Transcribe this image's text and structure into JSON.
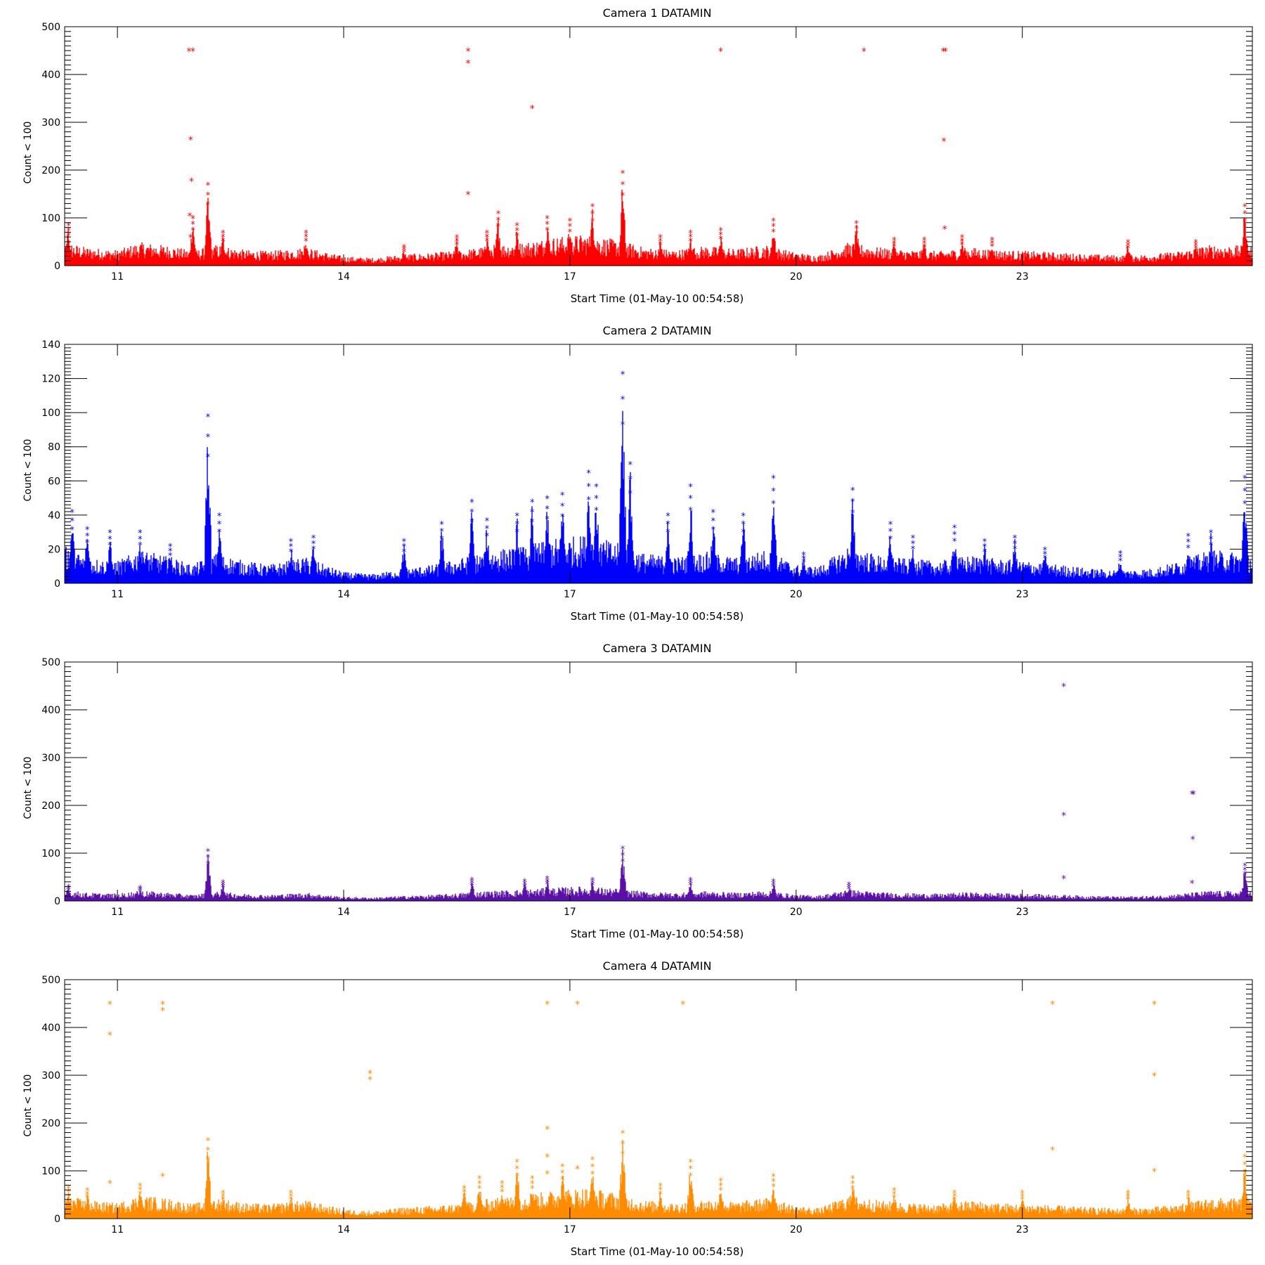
{
  "chart_data": [
    {
      "type": "scatter",
      "title": "Camera 1 DATAMIN",
      "xlabel": "Start Time (01-May-10 00:54:58)",
      "ylabel": "Count < 100",
      "color": "#ff0000",
      "xlim": [
        10.3,
        26.05
      ],
      "ylim": [
        0,
        500
      ],
      "xticks": [
        11,
        14,
        17,
        20,
        23
      ],
      "yticks": [
        0,
        100,
        200,
        300,
        400,
        500
      ],
      "y_minor_step": 10,
      "marker": "asterisk",
      "baseline": [
        [
          10.3,
          45
        ],
        [
          10.6,
          35
        ],
        [
          11.0,
          30
        ],
        [
          11.3,
          45
        ],
        [
          11.7,
          38
        ],
        [
          12.0,
          28
        ],
        [
          12.3,
          40
        ],
        [
          12.7,
          30
        ],
        [
          13.0,
          28
        ],
        [
          13.5,
          35
        ],
        [
          14.0,
          18
        ],
        [
          14.4,
          15
        ],
        [
          14.8,
          22
        ],
        [
          15.2,
          25
        ],
        [
          15.6,
          30
        ],
        [
          16.0,
          40
        ],
        [
          16.4,
          45
        ],
        [
          16.8,
          55
        ],
        [
          17.2,
          60
        ],
        [
          17.6,
          50
        ],
        [
          18.0,
          35
        ],
        [
          18.4,
          30
        ],
        [
          18.8,
          38
        ],
        [
          19.2,
          32
        ],
        [
          19.6,
          40
        ],
        [
          20.0,
          25
        ],
        [
          20.3,
          20
        ],
        [
          20.7,
          45
        ],
        [
          21.1,
          35
        ],
        [
          21.5,
          30
        ],
        [
          21.9,
          28
        ],
        [
          22.3,
          35
        ],
        [
          22.7,
          30
        ],
        [
          23.1,
          28
        ],
        [
          23.5,
          25
        ],
        [
          23.9,
          22
        ],
        [
          24.3,
          20
        ],
        [
          24.7,
          22
        ],
        [
          25.1,
          28
        ],
        [
          25.5,
          40
        ],
        [
          26.05,
          38
        ]
      ],
      "bursts": [
        [
          10.35,
          85
        ],
        [
          12.0,
          100
        ],
        [
          12.2,
          170
        ],
        [
          12.4,
          70
        ],
        [
          13.5,
          70
        ],
        [
          14.8,
          40
        ],
        [
          15.5,
          60
        ],
        [
          15.9,
          70
        ],
        [
          16.05,
          110
        ],
        [
          16.3,
          85
        ],
        [
          16.7,
          100
        ],
        [
          17.0,
          95
        ],
        [
          17.3,
          125
        ],
        [
          17.7,
          195
        ],
        [
          18.2,
          60
        ],
        [
          18.6,
          70
        ],
        [
          19.0,
          75
        ],
        [
          19.7,
          95
        ],
        [
          20.8,
          90
        ],
        [
          21.3,
          55
        ],
        [
          21.7,
          55
        ],
        [
          22.2,
          60
        ],
        [
          22.6,
          55
        ],
        [
          24.4,
          50
        ],
        [
          25.3,
          50
        ],
        [
          25.95,
          125
        ]
      ],
      "outliers": [
        [
          11.95,
          450
        ],
        [
          12.0,
          450
        ],
        [
          11.97,
          265
        ],
        [
          11.98,
          178
        ],
        [
          11.96,
          105
        ],
        [
          11.97,
          60
        ],
        [
          15.65,
          450
        ],
        [
          15.65,
          425
        ],
        [
          15.65,
          150
        ],
        [
          16.5,
          330
        ],
        [
          19.0,
          450
        ],
        [
          20.9,
          450
        ],
        [
          21.95,
          450
        ],
        [
          21.98,
          450
        ],
        [
          21.96,
          262
        ],
        [
          21.97,
          78
        ]
      ]
    },
    {
      "type": "scatter",
      "title": "Camera 2 DATAMIN",
      "xlabel": "Start Time (01-May-10 00:54:58)",
      "ylabel": "Count < 100",
      "color": "#0000ff",
      "xlim": [
        10.3,
        26.05
      ],
      "ylim": [
        0,
        140
      ],
      "xticks": [
        11,
        14,
        17,
        20,
        23
      ],
      "yticks": [
        0,
        20,
        40,
        60,
        80,
        100,
        120,
        140
      ],
      "y_minor_step": 2,
      "marker": "asterisk",
      "baseline": [
        [
          10.3,
          20
        ],
        [
          10.6,
          14
        ],
        [
          11.0,
          12
        ],
        [
          11.3,
          18
        ],
        [
          11.7,
          14
        ],
        [
          12.0,
          10
        ],
        [
          12.3,
          16
        ],
        [
          12.7,
          12
        ],
        [
          13.0,
          10
        ],
        [
          13.5,
          14
        ],
        [
          14.0,
          6
        ],
        [
          14.4,
          5
        ],
        [
          14.8,
          8
        ],
        [
          15.2,
          10
        ],
        [
          15.6,
          14
        ],
        [
          16.0,
          18
        ],
        [
          16.4,
          20
        ],
        [
          16.8,
          24
        ],
        [
          17.2,
          26
        ],
        [
          17.6,
          22
        ],
        [
          18.0,
          16
        ],
        [
          18.4,
          14
        ],
        [
          18.8,
          17
        ],
        [
          19.2,
          14
        ],
        [
          19.6,
          18
        ],
        [
          20.0,
          10
        ],
        [
          20.3,
          9
        ],
        [
          20.7,
          20
        ],
        [
          21.1,
          15
        ],
        [
          21.5,
          13
        ],
        [
          21.9,
          12
        ],
        [
          22.3,
          15
        ],
        [
          22.7,
          13
        ],
        [
          23.1,
          12
        ],
        [
          23.5,
          10
        ],
        [
          23.9,
          8
        ],
        [
          24.3,
          7
        ],
        [
          24.7,
          8
        ],
        [
          25.1,
          12
        ],
        [
          25.5,
          18
        ],
        [
          26.05,
          16
        ]
      ],
      "bursts": [
        [
          10.4,
          42
        ],
        [
          10.6,
          32
        ],
        [
          10.9,
          30
        ],
        [
          11.3,
          30
        ],
        [
          11.7,
          22
        ],
        [
          12.2,
          98
        ],
        [
          12.35,
          40
        ],
        [
          13.3,
          25
        ],
        [
          13.6,
          27
        ],
        [
          14.8,
          25
        ],
        [
          15.3,
          35
        ],
        [
          15.7,
          48
        ],
        [
          15.9,
          37
        ],
        [
          16.3,
          40
        ],
        [
          16.5,
          48
        ],
        [
          16.7,
          50
        ],
        [
          16.9,
          52
        ],
        [
          17.25,
          65
        ],
        [
          17.35,
          57
        ],
        [
          17.7,
          123
        ],
        [
          17.8,
          70
        ],
        [
          18.3,
          40
        ],
        [
          18.6,
          57
        ],
        [
          18.9,
          42
        ],
        [
          19.3,
          40
        ],
        [
          19.7,
          62
        ],
        [
          20.1,
          17
        ],
        [
          20.75,
          55
        ],
        [
          21.25,
          35
        ],
        [
          21.55,
          27
        ],
        [
          22.1,
          33
        ],
        [
          22.5,
          25
        ],
        [
          22.9,
          27
        ],
        [
          23.3,
          20
        ],
        [
          24.3,
          18
        ],
        [
          25.2,
          28
        ],
        [
          25.5,
          30
        ],
        [
          25.95,
          62
        ]
      ],
      "outliers": []
    },
    {
      "type": "scatter",
      "title": "Camera 3 DATAMIN",
      "xlabel": "Start Time (01-May-10 00:54:58)",
      "ylabel": "Count < 100",
      "color": "#5a0fa8",
      "xlim": [
        10.3,
        26.05
      ],
      "ylim": [
        0,
        500
      ],
      "xticks": [
        11,
        14,
        17,
        20,
        23
      ],
      "yticks": [
        0,
        100,
        200,
        300,
        400,
        500
      ],
      "y_minor_step": 10,
      "marker": "asterisk",
      "baseline": [
        [
          10.3,
          22
        ],
        [
          10.6,
          16
        ],
        [
          11.0,
          14
        ],
        [
          11.3,
          20
        ],
        [
          11.7,
          16
        ],
        [
          12.0,
          12
        ],
        [
          12.3,
          18
        ],
        [
          12.7,
          14
        ],
        [
          13.0,
          12
        ],
        [
          13.5,
          16
        ],
        [
          14.0,
          8
        ],
        [
          14.4,
          7
        ],
        [
          14.8,
          10
        ],
        [
          15.2,
          12
        ],
        [
          15.6,
          16
        ],
        [
          16.0,
          20
        ],
        [
          16.4,
          22
        ],
        [
          16.8,
          26
        ],
        [
          17.2,
          28
        ],
        [
          17.6,
          24
        ],
        [
          18.0,
          18
        ],
        [
          18.4,
          16
        ],
        [
          18.8,
          19
        ],
        [
          19.2,
          16
        ],
        [
          19.6,
          20
        ],
        [
          20.0,
          12
        ],
        [
          20.3,
          11
        ],
        [
          20.7,
          22
        ],
        [
          21.1,
          17
        ],
        [
          21.5,
          15
        ],
        [
          21.9,
          14
        ],
        [
          22.3,
          17
        ],
        [
          22.7,
          15
        ],
        [
          23.1,
          14
        ],
        [
          23.5,
          12
        ],
        [
          23.9,
          10
        ],
        [
          24.3,
          9
        ],
        [
          24.7,
          10
        ],
        [
          25.1,
          14
        ],
        [
          25.5,
          20
        ],
        [
          26.05,
          18
        ]
      ],
      "bursts": [
        [
          10.35,
          30
        ],
        [
          11.3,
          28
        ],
        [
          12.2,
          105
        ],
        [
          12.4,
          40
        ],
        [
          15.7,
          45
        ],
        [
          16.4,
          42
        ],
        [
          16.7,
          48
        ],
        [
          17.3,
          45
        ],
        [
          17.7,
          110
        ],
        [
          18.6,
          45
        ],
        [
          19.7,
          42
        ],
        [
          20.7,
          35
        ],
        [
          25.95,
          75
        ]
      ],
      "outliers": [
        [
          23.55,
          450
        ],
        [
          23.55,
          180
        ],
        [
          23.55,
          48
        ],
        [
          25.25,
          225
        ],
        [
          25.27,
          225
        ],
        [
          25.26,
          130
        ],
        [
          25.25,
          38
        ]
      ]
    },
    {
      "type": "scatter",
      "title": "Camera 4 DATAMIN",
      "xlabel": "Start Time (01-May-10 00:54:58)",
      "ylabel": "Count < 100",
      "color": "#ff8c00",
      "xlim": [
        10.3,
        26.05
      ],
      "ylim": [
        0,
        500
      ],
      "xticks": [
        11,
        14,
        17,
        20,
        23
      ],
      "yticks": [
        0,
        100,
        200,
        300,
        400,
        500
      ],
      "y_minor_step": 10,
      "marker": "asterisk",
      "baseline": [
        [
          10.3,
          45
        ],
        [
          10.6,
          35
        ],
        [
          11.0,
          30
        ],
        [
          11.3,
          45
        ],
        [
          11.7,
          38
        ],
        [
          12.0,
          28
        ],
        [
          12.3,
          40
        ],
        [
          12.7,
          30
        ],
        [
          13.0,
          28
        ],
        [
          13.5,
          35
        ],
        [
          14.0,
          18
        ],
        [
          14.4,
          15
        ],
        [
          14.8,
          22
        ],
        [
          15.2,
          25
        ],
        [
          15.6,
          30
        ],
        [
          16.0,
          40
        ],
        [
          16.4,
          45
        ],
        [
          16.8,
          55
        ],
        [
          17.2,
          60
        ],
        [
          17.6,
          50
        ],
        [
          18.0,
          35
        ],
        [
          18.4,
          30
        ],
        [
          18.8,
          38
        ],
        [
          19.2,
          32
        ],
        [
          19.6,
          40
        ],
        [
          20.0,
          25
        ],
        [
          20.3,
          20
        ],
        [
          20.7,
          45
        ],
        [
          21.1,
          35
        ],
        [
          21.5,
          30
        ],
        [
          21.9,
          28
        ],
        [
          22.3,
          35
        ],
        [
          22.7,
          30
        ],
        [
          23.1,
          28
        ],
        [
          23.5,
          25
        ],
        [
          23.9,
          22
        ],
        [
          24.3,
          20
        ],
        [
          24.7,
          22
        ],
        [
          25.1,
          28
        ],
        [
          25.5,
          40
        ],
        [
          26.05,
          38
        ]
      ],
      "bursts": [
        [
          10.35,
          65
        ],
        [
          10.6,
          60
        ],
        [
          11.3,
          70
        ],
        [
          12.2,
          165
        ],
        [
          12.4,
          55
        ],
        [
          13.3,
          55
        ],
        [
          15.6,
          65
        ],
        [
          15.8,
          85
        ],
        [
          16.1,
          75
        ],
        [
          16.3,
          120
        ],
        [
          16.5,
          85
        ],
        [
          16.9,
          110
        ],
        [
          17.3,
          125
        ],
        [
          17.7,
          180
        ],
        [
          18.2,
          70
        ],
        [
          18.6,
          120
        ],
        [
          19.0,
          80
        ],
        [
          19.7,
          90
        ],
        [
          20.75,
          85
        ],
        [
          21.3,
          60
        ],
        [
          22.1,
          55
        ],
        [
          23.0,
          55
        ],
        [
          24.4,
          55
        ],
        [
          25.2,
          55
        ],
        [
          25.95,
          130
        ]
      ],
      "outliers": [
        [
          10.9,
          450
        ],
        [
          10.9,
          385
        ],
        [
          10.9,
          75
        ],
        [
          11.6,
          450
        ],
        [
          11.6,
          437
        ],
        [
          11.6,
          90
        ],
        [
          14.35,
          305
        ],
        [
          14.35,
          292
        ],
        [
          16.7,
          450
        ],
        [
          16.7,
          188
        ],
        [
          16.7,
          130
        ],
        [
          16.7,
          95
        ],
        [
          17.1,
          450
        ],
        [
          17.1,
          105
        ],
        [
          18.5,
          450
        ],
        [
          23.4,
          450
        ],
        [
          23.4,
          145
        ],
        [
          24.75,
          450
        ],
        [
          24.75,
          300
        ],
        [
          24.75,
          100
        ]
      ]
    }
  ]
}
